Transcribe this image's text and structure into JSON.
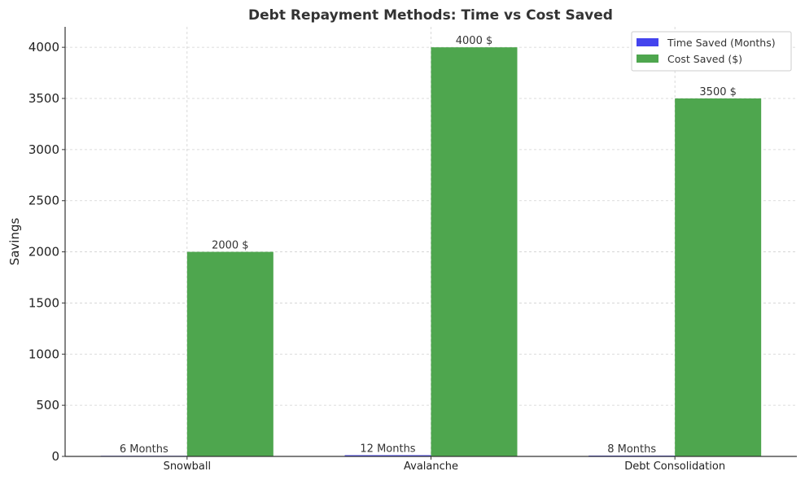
{
  "chart_data": {
    "type": "bar",
    "title": "Debt Repayment Methods: Time vs Cost Saved",
    "xlabel": "",
    "ylabel": "Savings",
    "categories": [
      "Snowball",
      "Avalanche",
      "Debt Consolidation"
    ],
    "ylim": [
      0,
      4200
    ],
    "yticks": [
      0,
      500,
      1000,
      1500,
      2000,
      2500,
      3000,
      3500,
      4000
    ],
    "grid": true,
    "legend": "top-right",
    "series": [
      {
        "name": "Time Saved (Months)",
        "color": "#4444ee",
        "values": [
          6,
          12,
          8
        ],
        "labels": [
          "6 Months",
          "12 Months",
          "8 Months"
        ]
      },
      {
        "name": "Cost Saved ($)",
        "color": "#4ea64e",
        "values": [
          2000,
          4000,
          3500
        ],
        "labels": [
          "2000 $",
          "4000 $",
          "3500 $"
        ]
      }
    ]
  }
}
